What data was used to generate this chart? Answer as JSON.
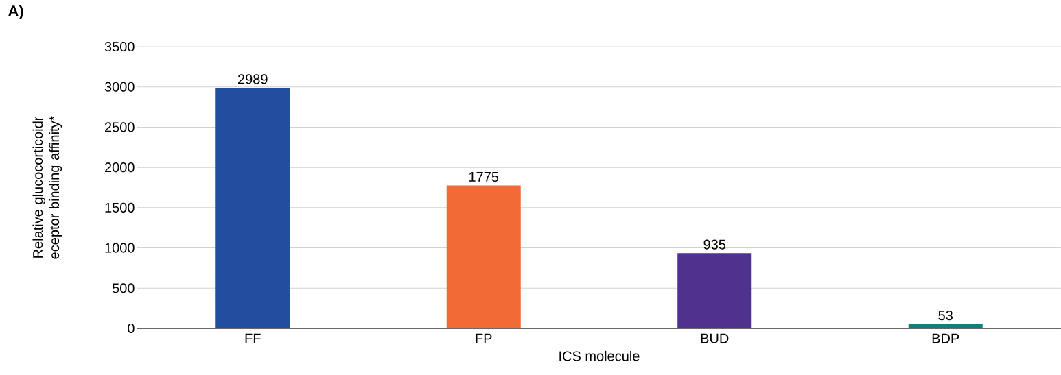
{
  "chart_data": {
    "type": "bar",
    "annotations": [
      "A)"
    ],
    "xlabel": "ICS molecule",
    "ylabel": "Relative glucocorticoidr eceptor binding affinity*",
    "categories": [
      "FF",
      "FP",
      "BUD",
      "BDP"
    ],
    "values": [
      2989,
      1775,
      935,
      53
    ],
    "colors": [
      "#234ea0",
      "#f26a35",
      "#50318e",
      "#137d7a"
    ],
    "ylim": [
      0,
      3500
    ],
    "yticks": [
      0,
      500,
      1000,
      1500,
      2000,
      2500,
      3000,
      3500
    ],
    "grid": "y",
    "data_labels": true
  }
}
